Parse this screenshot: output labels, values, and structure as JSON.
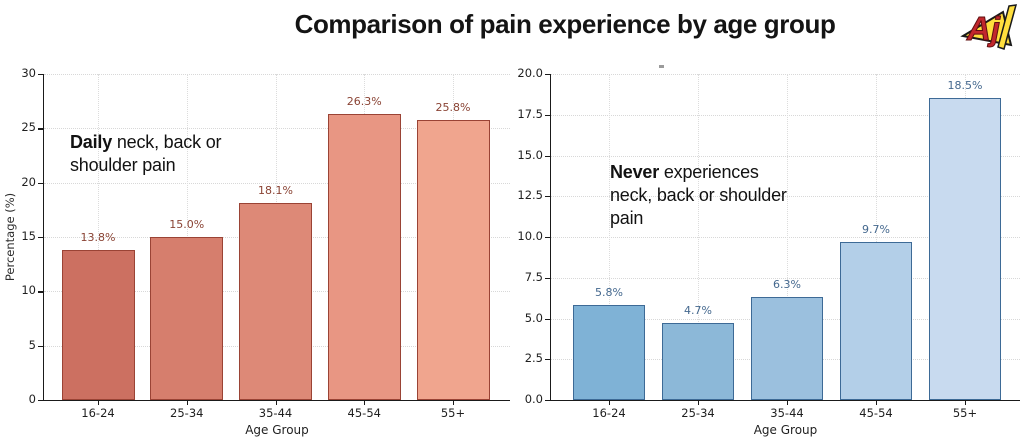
{
  "header": {
    "title": "Comparison of pain experience by age group",
    "logo_text": "Aj"
  },
  "chart_data": [
    {
      "type": "bar",
      "annotation_bold": "Daily",
      "annotation_rest": "neck, back or shoulder pain",
      "categories": [
        "16-24",
        "25-34",
        "35-44",
        "45-54",
        "55+"
      ],
      "values": [
        13.8,
        15.0,
        18.1,
        26.3,
        25.8
      ],
      "value_labels": [
        "13.8%",
        "15.0%",
        "18.1%",
        "26.3%",
        "25.8%"
      ],
      "xlabel": "Age Group",
      "ylabel": "Percentage (%)",
      "ylim": [
        0,
        30
      ],
      "yticks": [
        0,
        5,
        10,
        15,
        20,
        25,
        30
      ],
      "ytick_labels": [
        "0",
        "5",
        "10",
        "15",
        "20",
        "25",
        "30"
      ],
      "grid": true,
      "legend": null,
      "bar_colors": [
        "#cc7061",
        "#d67e6d",
        "#dd8977",
        "#e89683",
        "#f0a58e"
      ],
      "bar_edge_color": "#9a4335",
      "value_label_color": "#8a4334"
    },
    {
      "type": "bar",
      "annotation_bold": "Never",
      "annotation_rest": "experiences neck, back or shoulder pain",
      "categories": [
        "16-24",
        "25-34",
        "35-44",
        "45-54",
        "55+"
      ],
      "values": [
        5.8,
        4.7,
        6.3,
        9.7,
        18.5
      ],
      "value_labels": [
        "5.8%",
        "4.7%",
        "6.3%",
        "9.7%",
        "18.5%"
      ],
      "xlabel": "Age Group",
      "ylabel": "",
      "ylim": [
        0,
        20
      ],
      "yticks": [
        0,
        2.5,
        5,
        7.5,
        10,
        12.5,
        15,
        17.5,
        20
      ],
      "ytick_labels": [
        "0.0",
        "2.5",
        "5.0",
        "7.5",
        "10.0",
        "12.5",
        "15.0",
        "17.5",
        "20.0"
      ],
      "grid": true,
      "legend": null,
      "bar_colors": [
        "#7fb2d6",
        "#8cb8d8",
        "#9bc0de",
        "#b3cfe8",
        "#c8daef"
      ],
      "bar_edge_color": "#3d6a96",
      "value_label_color": "#44688e"
    }
  ]
}
